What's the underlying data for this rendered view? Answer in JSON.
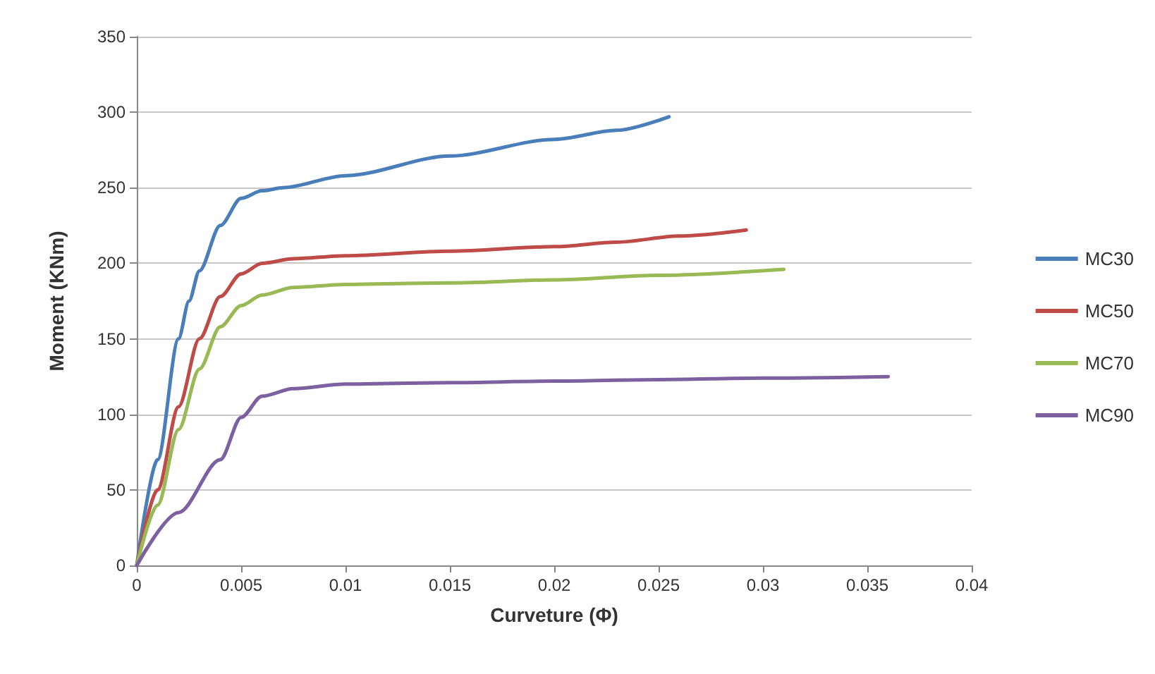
{
  "chart_data": {
    "type": "line",
    "xlabel": "Curveture (Φ)",
    "ylabel": "Moment (KNm)",
    "xlim": [
      0,
      0.04
    ],
    "xticks": [
      0,
      0.005,
      0.01,
      0.015,
      0.02,
      0.025,
      0.03,
      0.035,
      0.04
    ],
    "ylim": [
      0,
      350
    ],
    "yticks": [
      0,
      50,
      100,
      150,
      200,
      250,
      300,
      350
    ],
    "grid": "y",
    "legend": "right",
    "marker": "none",
    "line_style": "solid",
    "series": [
      {
        "name": "MC30",
        "color": "#4a7ebb",
        "x": [
          0,
          0.001,
          0.002,
          0.0025,
          0.003,
          0.004,
          0.005,
          0.006,
          0.007,
          0.01,
          0.015,
          0.02,
          0.023,
          0.0255
        ],
        "values": [
          0,
          70,
          150,
          175,
          195,
          225,
          243,
          248,
          250,
          258,
          271,
          282,
          288,
          297
        ]
      },
      {
        "name": "MC50",
        "color": "#be4b48",
        "x": [
          0,
          0.001,
          0.002,
          0.003,
          0.004,
          0.005,
          0.006,
          0.0075,
          0.01,
          0.015,
          0.02,
          0.023,
          0.026,
          0.0292
        ],
        "values": [
          0,
          50,
          105,
          150,
          178,
          193,
          200,
          203,
          205,
          208,
          211,
          214,
          218,
          222
        ]
      },
      {
        "name": "MC70",
        "color": "#98b954",
        "x": [
          0,
          0.001,
          0.002,
          0.003,
          0.004,
          0.005,
          0.006,
          0.0075,
          0.01,
          0.015,
          0.02,
          0.025,
          0.031
        ],
        "values": [
          0,
          40,
          90,
          130,
          158,
          172,
          179,
          184,
          186,
          187,
          189,
          192,
          196
        ]
      },
      {
        "name": "MC90",
        "color": "#7d60a0",
        "x": [
          0,
          0.002,
          0.004,
          0.005,
          0.006,
          0.0075,
          0.01,
          0.015,
          0.02,
          0.025,
          0.03,
          0.036
        ],
        "values": [
          0,
          35,
          70,
          98,
          112,
          117,
          120,
          121,
          122,
          123,
          124,
          125
        ]
      }
    ]
  }
}
